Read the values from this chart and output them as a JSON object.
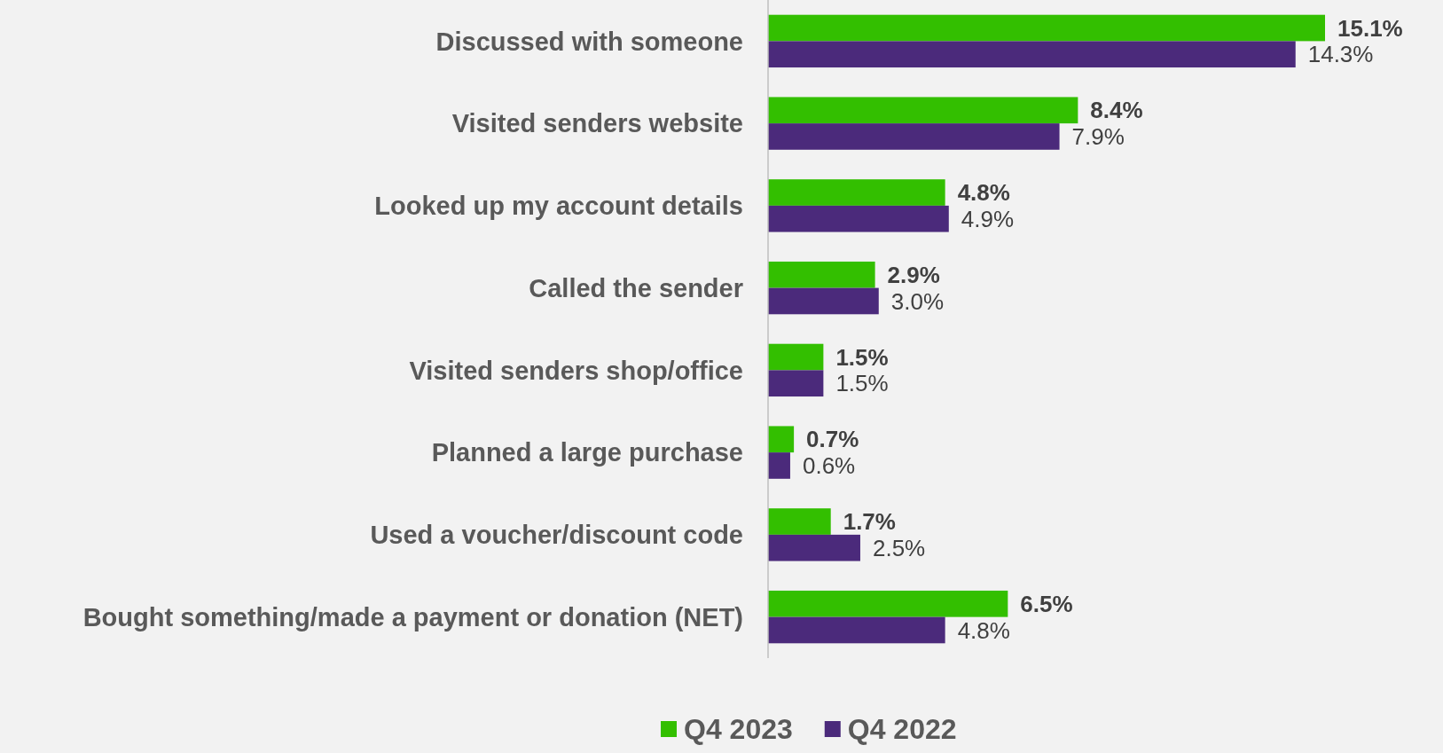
{
  "chart_data": {
    "type": "bar",
    "orientation": "horizontal",
    "legend": "bottom",
    "categories": [
      "Discussed with someone",
      "Visited senders website",
      "Looked up my account details",
      "Called the sender",
      "Visited senders shop/office",
      "Planned a large purchase",
      "Used a voucher/discount code",
      "Bought something/made a payment or donation (NET)"
    ],
    "series": [
      {
        "name": "Q4 2023",
        "color": "#33bf00",
        "values": [
          15.1,
          8.4,
          4.8,
          2.9,
          1.5,
          0.7,
          1.7,
          6.5
        ],
        "value_labels": [
          "15.1%",
          "8.4%",
          "4.8%",
          "2.9%",
          "1.5%",
          "0.7%",
          "1.7%",
          "6.5%"
        ]
      },
      {
        "name": "Q4 2022",
        "color": "#4b2a7b",
        "values": [
          14.3,
          7.9,
          4.9,
          3.0,
          1.5,
          0.6,
          2.5,
          4.8
        ],
        "value_labels": [
          "14.3%",
          "7.9%",
          "4.9%",
          "3.0%",
          "1.5%",
          "0.6%",
          "2.5%",
          "4.8%"
        ]
      }
    ]
  }
}
